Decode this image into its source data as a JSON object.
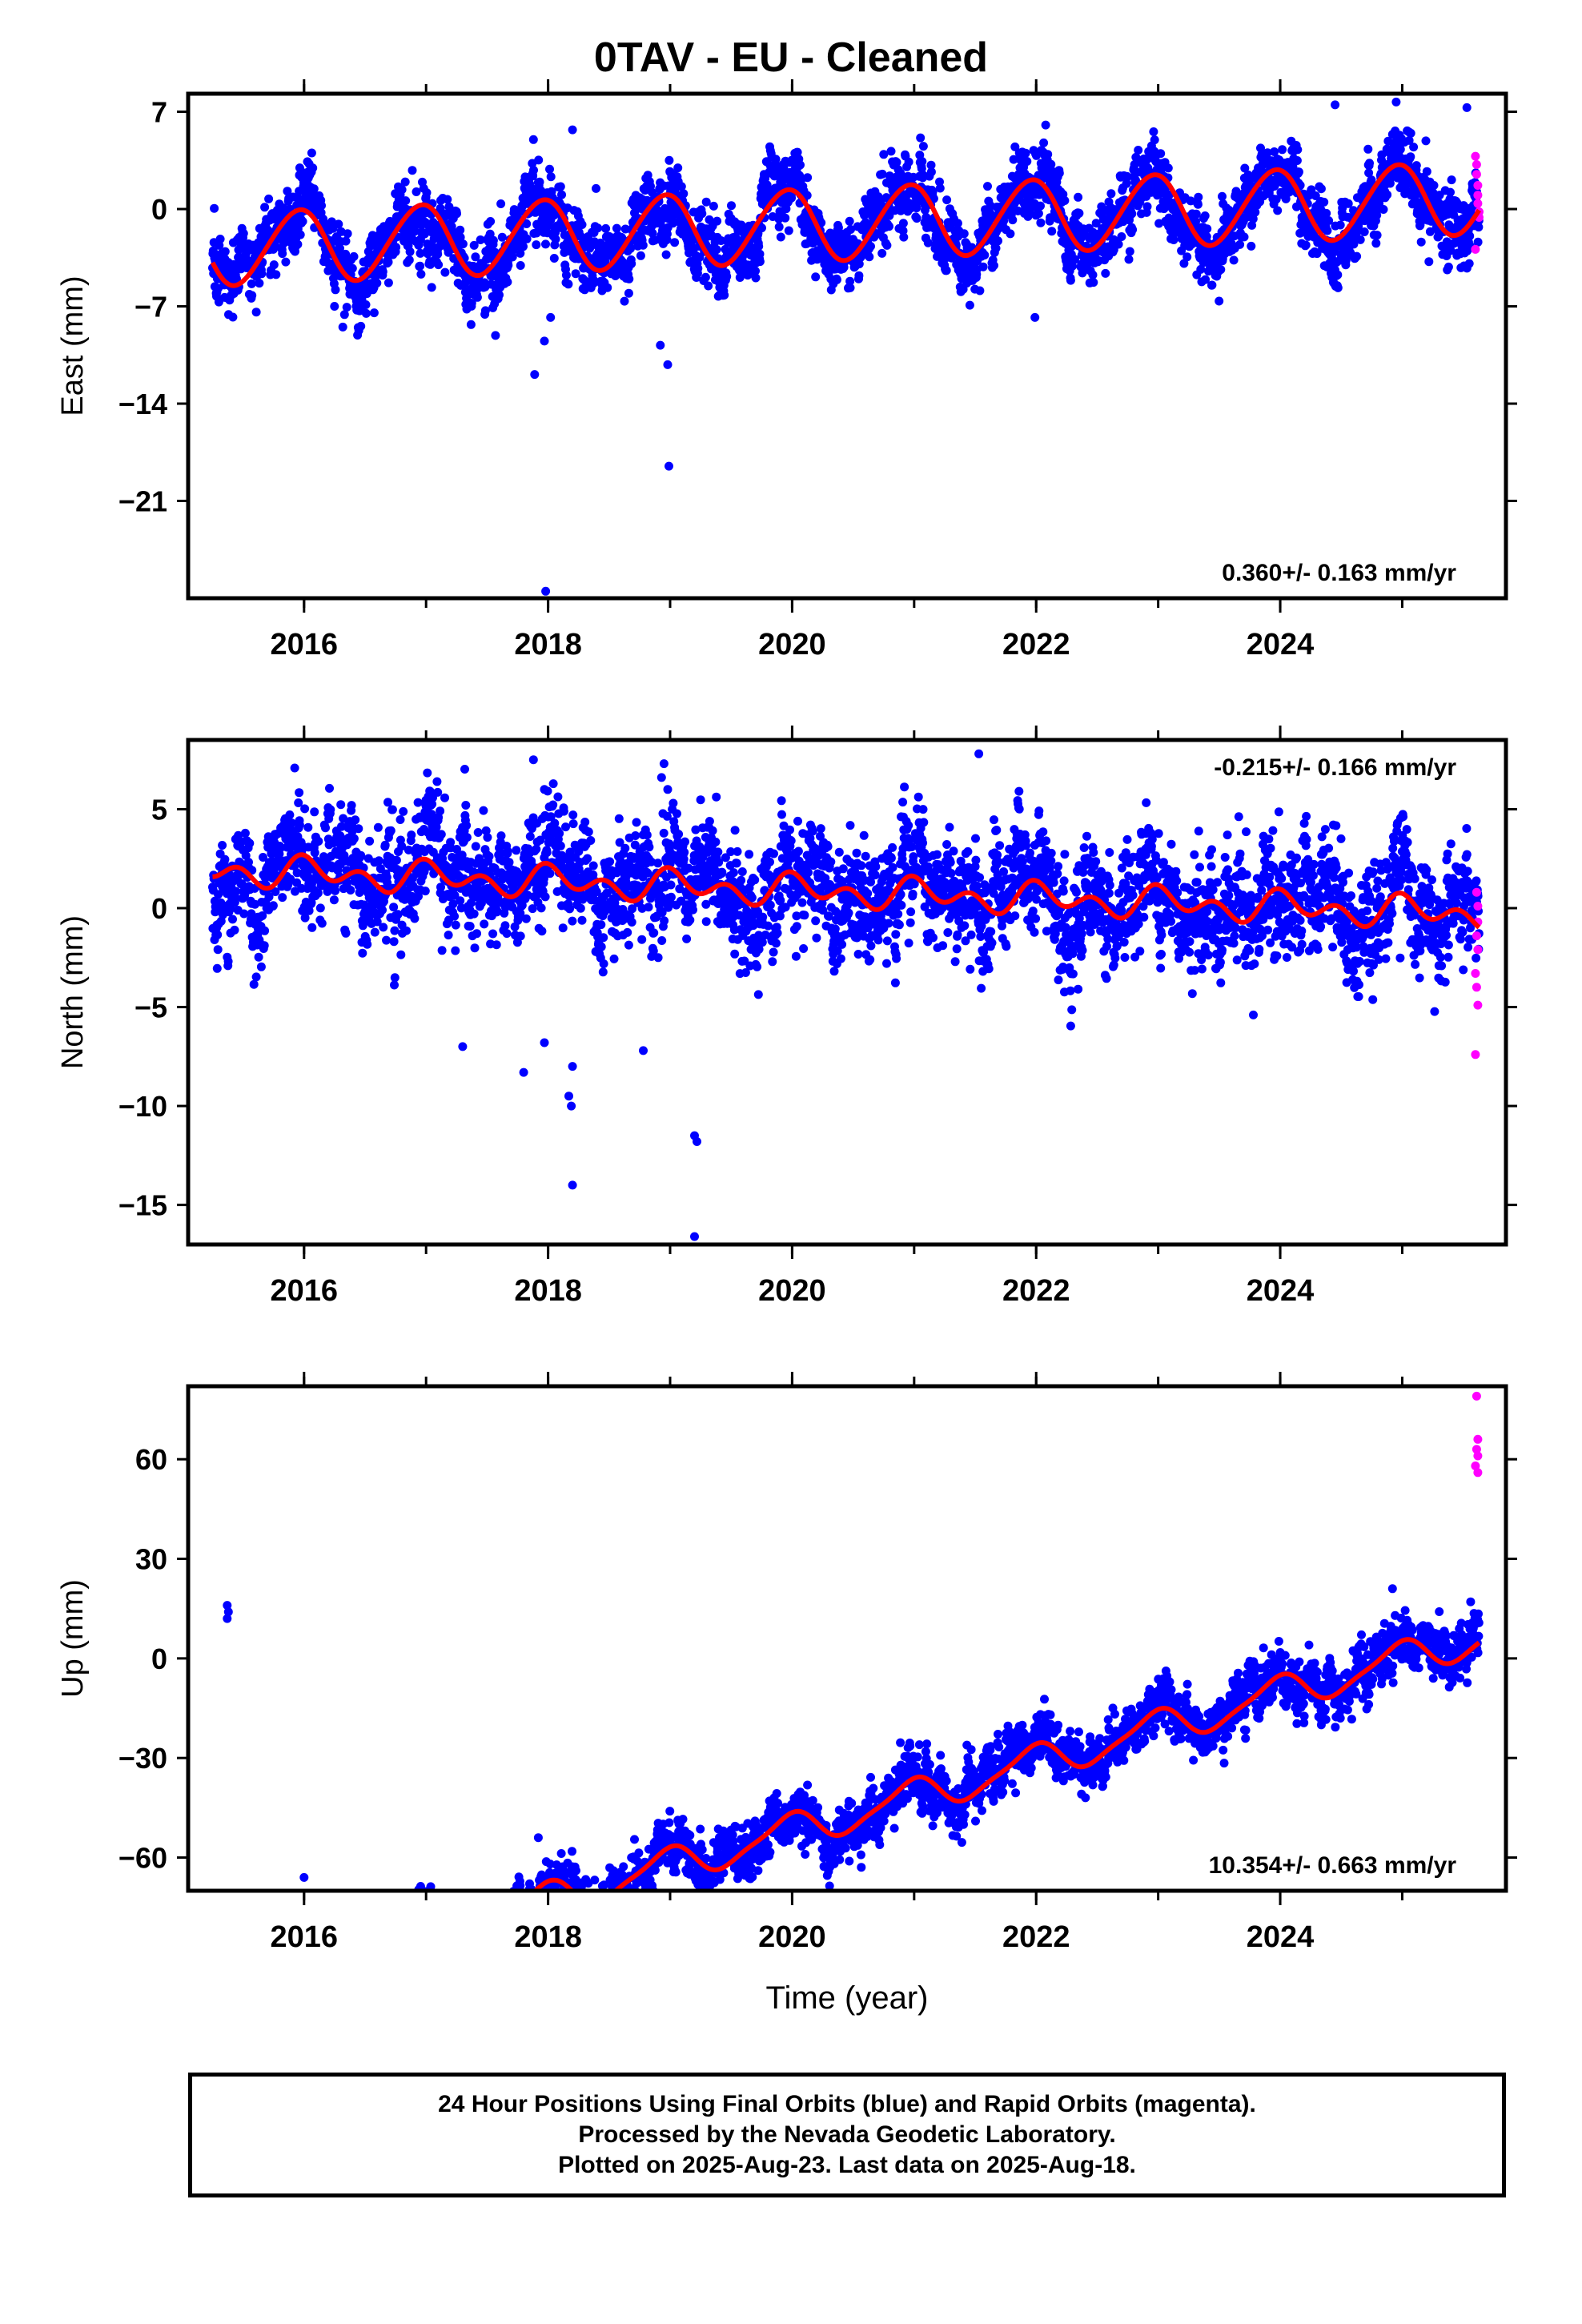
{
  "title": "0TAV  - EU - Cleaned",
  "xlabel": "Time (year)",
  "caption": {
    "line1": "24 Hour Positions Using Final Orbits (blue) and Rapid Orbits (magenta).",
    "line2": "Processed by the Nevada Geodetic Laboratory.",
    "line3": "Plotted on 2025-Aug-23. Last data on 2025-Aug-18."
  },
  "colors": {
    "final": "#0000ff",
    "rapid": "#ff00ff",
    "model": "#ff0000"
  },
  "chart_data": [
    {
      "type": "scatter",
      "panel": "east",
      "ylabel": "East (mm)",
      "xlim": [
        2015.05,
        2025.85
      ],
      "ylim": [
        -28,
        8.3
      ],
      "xticks": [
        2016,
        2018,
        2020,
        2022,
        2024
      ],
      "yticks": [
        7,
        0,
        -7,
        -14,
        -21
      ],
      "rate_label": "0.360+/- 0.163 mm/yr",
      "rate_position": "bottom-right",
      "data_start": 2015.25,
      "data_end": 2025.63,
      "model": {
        "offset": -1.2,
        "trend": 0.36,
        "annual_amp": 2.6,
        "annual_phase": 1.9,
        "semiannual_amp": 0.2,
        "semiannual_phase": 0.5
      },
      "scatter_noise": 1.1,
      "outliers": [
        {
          "x": 2017.89,
          "y": -11.9
        },
        {
          "x": 2017.98,
          "y": -27.5
        },
        {
          "x": 2017.97,
          "y": -9.5
        },
        {
          "x": 2018.02,
          "y": -7.8
        },
        {
          "x": 2017.88,
          "y": 5.0
        },
        {
          "x": 2018.2,
          "y": 5.7
        },
        {
          "x": 2018.98,
          "y": -11.2
        },
        {
          "x": 2018.99,
          "y": -18.5
        },
        {
          "x": 2018.92,
          "y": -9.8
        },
        {
          "x": 2021.99,
          "y": -7.8
        },
        {
          "x": 2024.45,
          "y": 7.5
        },
        {
          "x": 2025.53,
          "y": 7.3
        }
      ],
      "rapid_points": [
        {
          "x": 2025.6,
          "y": 3.8
        },
        {
          "x": 2025.61,
          "y": 3.2
        },
        {
          "x": 2025.61,
          "y": 2.5
        },
        {
          "x": 2025.62,
          "y": 1.7
        },
        {
          "x": 2025.62,
          "y": 1.0
        },
        {
          "x": 2025.62,
          "y": 0.4
        },
        {
          "x": 2025.63,
          "y": -0.2
        },
        {
          "x": 2025.63,
          "y": -0.6
        },
        {
          "x": 2025.6,
          "y": -2.9
        }
      ]
    },
    {
      "type": "scatter",
      "panel": "north",
      "ylabel": "North (mm)",
      "xlim": [
        2015.05,
        2025.85
      ],
      "ylim": [
        -17,
        8.5
      ],
      "xticks": [
        2016,
        2018,
        2020,
        2022,
        2024
      ],
      "yticks": [
        5,
        0,
        -5,
        -10,
        -15
      ],
      "rate_label": "-0.215+/- 0.166 mm/yr",
      "rate_position": "top-right",
      "data_start": 2015.25,
      "data_end": 2025.63,
      "model": {
        "offset": 0.9,
        "trend": -0.215,
        "annual_amp": 0.45,
        "annual_phase": 1.2,
        "semiannual_amp": 0.55,
        "semiannual_phase": 2.0
      },
      "scatter_noise": 1.2,
      "outliers": [
        {
          "x": 2017.88,
          "y": 7.5
        },
        {
          "x": 2017.97,
          "y": 6.0
        },
        {
          "x": 2018.95,
          "y": 7.3
        },
        {
          "x": 2018.93,
          "y": 6.6
        },
        {
          "x": 2018.98,
          "y": 6.0
        },
        {
          "x": 2021.53,
          "y": 7.8
        },
        {
          "x": 2017.3,
          "y": -7.0
        },
        {
          "x": 2017.8,
          "y": -8.3
        },
        {
          "x": 2017.97,
          "y": -6.8
        },
        {
          "x": 2018.2,
          "y": -8.0
        },
        {
          "x": 2018.17,
          "y": -9.5
        },
        {
          "x": 2018.19,
          "y": -10.0
        },
        {
          "x": 2018.2,
          "y": -14.0
        },
        {
          "x": 2018.78,
          "y": -7.2
        },
        {
          "x": 2019.2,
          "y": -11.5
        },
        {
          "x": 2019.22,
          "y": -11.8
        },
        {
          "x": 2019.2,
          "y": -16.6
        },
        {
          "x": 2023.78,
          "y": -5.4
        }
      ],
      "rapid_points": [
        {
          "x": 2025.61,
          "y": 0.8
        },
        {
          "x": 2025.62,
          "y": 0.1
        },
        {
          "x": 2025.62,
          "y": -0.7
        },
        {
          "x": 2025.61,
          "y": -1.4
        },
        {
          "x": 2025.62,
          "y": -2.1
        },
        {
          "x": 2025.6,
          "y": -3.3
        },
        {
          "x": 2025.61,
          "y": -4.0
        },
        {
          "x": 2025.62,
          "y": -4.9
        },
        {
          "x": 2025.6,
          "y": -7.4
        }
      ]
    },
    {
      "type": "scatter",
      "panel": "up",
      "ylabel": "Up (mm)",
      "xlim": [
        2015.05,
        2025.85
      ],
      "ylim": [
        -70,
        82
      ],
      "xticks": [
        2016,
        2018,
        2020,
        2022,
        2024
      ],
      "yticks": [
        60,
        30,
        0,
        -30,
        -60
      ],
      "rate_label": "10.354+/- 0.663 mm/yr",
      "rate_position": "bottom-right",
      "data_start": 2015.25,
      "data_end": 2025.63,
      "model": {
        "offset": -52.0,
        "trend": 10.354,
        "annual_amp": 5.0,
        "annual_phase": 1.8,
        "semiannual_amp": 1.2,
        "semiannual_phase": 0.6
      },
      "scatter_noise": 3.5,
      "outliers": [
        {
          "x": 2015.37,
          "y": 16.0
        },
        {
          "x": 2015.38,
          "y": 14.0
        },
        {
          "x": 2015.37,
          "y": 12.0
        },
        {
          "x": 2020.05,
          "y": -41.0
        },
        {
          "x": 2017.92,
          "y": -54.0
        },
        {
          "x": 2016.0,
          "y": -66.0
        },
        {
          "x": 2024.92,
          "y": 21.0
        }
      ],
      "rapid_points": [
        {
          "x": 2025.61,
          "y": 79.0
        },
        {
          "x": 2025.62,
          "y": 66.0
        },
        {
          "x": 2025.61,
          "y": 63.0
        },
        {
          "x": 2025.62,
          "y": 61.0
        },
        {
          "x": 2025.6,
          "y": 58.0
        },
        {
          "x": 2025.62,
          "y": 56.0
        }
      ]
    }
  ]
}
